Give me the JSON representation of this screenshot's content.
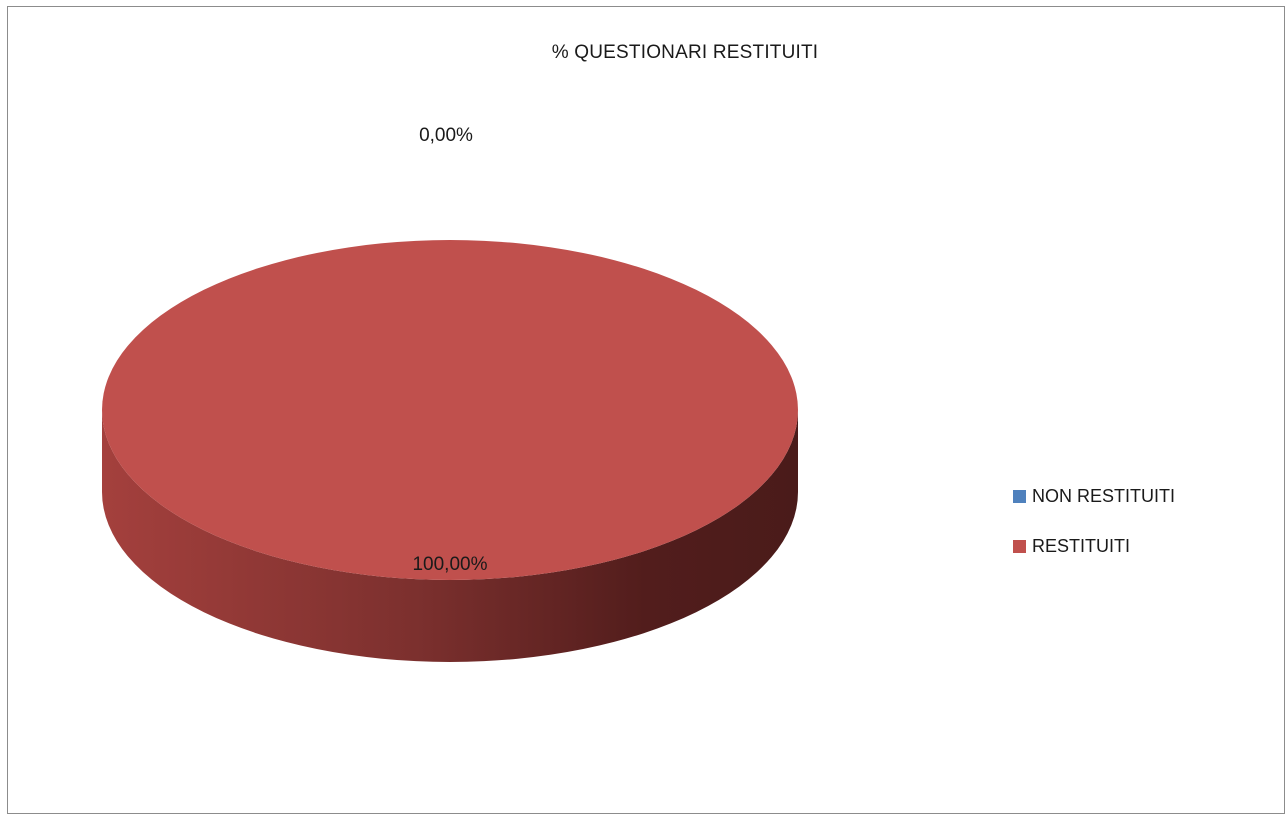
{
  "chart_data": {
    "type": "pie",
    "title": "% QUESTIONARI RESTITUITI",
    "categories": [
      "NON RESTITUITI",
      "RESTITUITI"
    ],
    "values": [
      0.0,
      100.0
    ],
    "data_labels": [
      "0,00%",
      "100,00%"
    ],
    "colors": [
      "#4f81bd",
      "#c0504d"
    ],
    "legend_position": "right",
    "style": "3d"
  }
}
